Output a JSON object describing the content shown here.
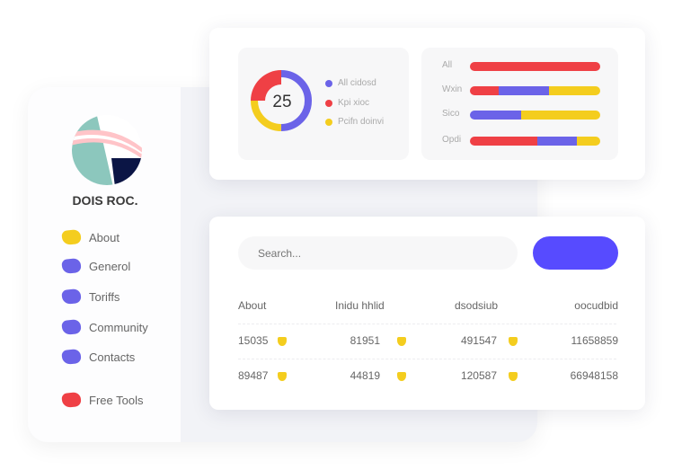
{
  "sidebar": {
    "brand": "DOIS ROC.",
    "items": [
      {
        "label": "About",
        "color": "#f4cd1e"
      },
      {
        "label": "Generol",
        "color": "#6b63e8"
      },
      {
        "label": "Toriffs",
        "color": "#6b63e8"
      },
      {
        "label": "Community",
        "color": "#6b63e8"
      },
      {
        "label": "Contacts",
        "color": "#6b63e8"
      },
      {
        "label": "Free Tools",
        "color": "#ef4045"
      }
    ]
  },
  "donut": {
    "center_value": "25",
    "segments": [
      {
        "label": "All cidosd",
        "percent": 50,
        "color": "#6b63e8"
      },
      {
        "label": "Kpi xioc",
        "percent": 25,
        "color": "#ef4045"
      },
      {
        "label": "Pcifn doinvi",
        "percent": 25,
        "color": "#f4cd1e"
      }
    ]
  },
  "bars": [
    {
      "label": "All",
      "segments": [
        {
          "color": "#ef4045",
          "percent": 100
        }
      ]
    },
    {
      "label": "Wxin",
      "segments": [
        {
          "color": "#ef4045",
          "percent": 22
        },
        {
          "color": "#6b63e8",
          "percent": 39
        },
        {
          "color": "#f4cd1e",
          "percent": 39
        }
      ]
    },
    {
      "label": "Sico",
      "segments": [
        {
          "color": "#6b63e8",
          "percent": 39
        },
        {
          "color": "#f4cd1e",
          "percent": 61
        }
      ]
    },
    {
      "label": "Opdi",
      "segments": [
        {
          "color": "#ef4045",
          "percent": 52
        },
        {
          "color": "#6b63e8",
          "percent": 30
        },
        {
          "color": "#f4cd1e",
          "percent": 18
        }
      ]
    }
  ],
  "search": {
    "placeholder": "Search..."
  },
  "button": {
    "color": "#574bff"
  },
  "table": {
    "headers": [
      "About",
      "Inidu hhlid",
      "dsodsiub",
      "oocudbid"
    ],
    "rows": [
      [
        "15035",
        "81951",
        "491547",
        "11658859"
      ],
      [
        "89487",
        "44819",
        "120587",
        "66948158"
      ]
    ]
  }
}
